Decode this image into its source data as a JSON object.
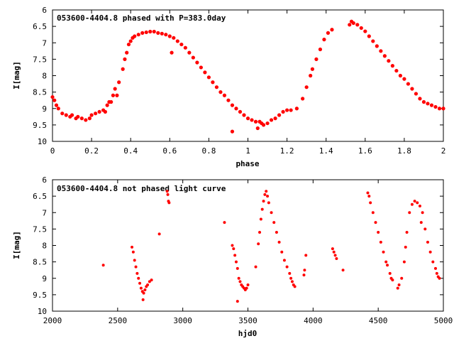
{
  "chart_data": [
    {
      "type": "scatter",
      "title": "053600-4404.8 phased with P=383.0day",
      "xlabel": "phase",
      "ylabel": "I[mag]",
      "xlim": [
        0,
        2
      ],
      "ylim": [
        6,
        10
      ],
      "y_inverted": true,
      "x_ticks": [
        "0",
        "0.2",
        "0.4",
        "0.6",
        "0.8",
        "1",
        "1.2",
        "1.4",
        "1.6",
        "1.8",
        "2"
      ],
      "y_ticks": [
        "6",
        "6.5",
        "7",
        "7.5",
        "8",
        "8.5",
        "9",
        "9.5",
        "10"
      ],
      "grid": false,
      "marker_color": "#ff0000",
      "series": [
        {
          "points": [
            [
              0.0,
              8.65
            ],
            [
              0.01,
              8.75
            ],
            [
              0.02,
              8.9
            ],
            [
              0.03,
              9.0
            ],
            [
              0.05,
              9.15
            ],
            [
              0.07,
              9.2
            ],
            [
              0.09,
              9.25
            ],
            [
              0.1,
              9.2
            ],
            [
              0.12,
              9.3
            ],
            [
              0.13,
              9.25
            ],
            [
              0.15,
              9.3
            ],
            [
              0.17,
              9.35
            ],
            [
              0.19,
              9.3
            ],
            [
              0.2,
              9.2
            ],
            [
              0.22,
              9.15
            ],
            [
              0.24,
              9.1
            ],
            [
              0.26,
              9.05
            ],
            [
              0.27,
              9.1
            ],
            [
              0.28,
              8.9
            ],
            [
              0.29,
              8.8
            ],
            [
              0.3,
              8.8
            ],
            [
              0.31,
              8.6
            ],
            [
              0.32,
              8.4
            ],
            [
              0.33,
              8.6
            ],
            [
              0.34,
              8.2
            ],
            [
              0.36,
              7.8
            ],
            [
              0.37,
              7.5
            ],
            [
              0.38,
              7.3
            ],
            [
              0.39,
              7.05
            ],
            [
              0.4,
              6.95
            ],
            [
              0.41,
              6.85
            ],
            [
              0.42,
              6.8
            ],
            [
              0.44,
              6.75
            ],
            [
              0.46,
              6.7
            ],
            [
              0.48,
              6.68
            ],
            [
              0.5,
              6.66
            ],
            [
              0.52,
              6.66
            ],
            [
              0.54,
              6.7
            ],
            [
              0.56,
              6.72
            ],
            [
              0.58,
              6.75
            ],
            [
              0.6,
              6.8
            ],
            [
              0.61,
              7.3
            ],
            [
              0.62,
              6.85
            ],
            [
              0.64,
              6.95
            ],
            [
              0.66,
              7.05
            ],
            [
              0.68,
              7.15
            ],
            [
              0.7,
              7.3
            ],
            [
              0.72,
              7.45
            ],
            [
              0.74,
              7.6
            ],
            [
              0.76,
              7.75
            ],
            [
              0.78,
              7.9
            ],
            [
              0.8,
              8.05
            ],
            [
              0.82,
              8.2
            ],
            [
              0.84,
              8.35
            ],
            [
              0.86,
              8.5
            ],
            [
              0.88,
              8.6
            ],
            [
              0.9,
              8.75
            ],
            [
              0.92,
              8.9
            ],
            [
              0.92,
              9.7
            ],
            [
              0.94,
              9.0
            ],
            [
              0.96,
              9.1
            ],
            [
              0.98,
              9.2
            ],
            [
              1.0,
              9.3
            ],
            [
              1.02,
              9.35
            ],
            [
              1.04,
              9.4
            ],
            [
              1.05,
              9.6
            ],
            [
              1.06,
              9.4
            ],
            [
              1.07,
              9.45
            ],
            [
              1.08,
              9.5
            ],
            [
              1.1,
              9.45
            ],
            [
              1.12,
              9.35
            ],
            [
              1.14,
              9.3
            ],
            [
              1.16,
              9.2
            ],
            [
              1.18,
              9.1
            ],
            [
              1.2,
              9.05
            ],
            [
              1.22,
              9.05
            ],
            [
              1.25,
              9.0
            ],
            [
              1.28,
              8.7
            ],
            [
              1.3,
              8.35
            ],
            [
              1.32,
              8.0
            ],
            [
              1.33,
              7.8
            ],
            [
              1.35,
              7.5
            ],
            [
              1.37,
              7.2
            ],
            [
              1.39,
              6.9
            ],
            [
              1.41,
              6.7
            ],
            [
              1.43,
              6.6
            ],
            [
              1.52,
              6.45
            ],
            [
              1.53,
              6.35
            ],
            [
              1.54,
              6.4
            ],
            [
              1.56,
              6.45
            ],
            [
              1.58,
              6.55
            ],
            [
              1.6,
              6.65
            ],
            [
              1.62,
              6.8
            ],
            [
              1.64,
              6.95
            ],
            [
              1.66,
              7.1
            ],
            [
              1.68,
              7.25
            ],
            [
              1.7,
              7.4
            ],
            [
              1.72,
              7.55
            ],
            [
              1.74,
              7.7
            ],
            [
              1.76,
              7.85
            ],
            [
              1.78,
              8.0
            ],
            [
              1.8,
              8.1
            ],
            [
              1.82,
              8.25
            ],
            [
              1.84,
              8.4
            ],
            [
              1.86,
              8.55
            ],
            [
              1.88,
              8.7
            ],
            [
              1.9,
              8.8
            ],
            [
              1.92,
              8.85
            ],
            [
              1.94,
              8.9
            ],
            [
              1.96,
              8.95
            ],
            [
              1.98,
              9.0
            ],
            [
              2.0,
              9.0
            ]
          ]
        }
      ]
    },
    {
      "type": "scatter",
      "title": "053600-4404.8 not phased light curve",
      "xlabel": "hjd0",
      "ylabel": "I[mag]",
      "xlim": [
        2000,
        5000
      ],
      "ylim": [
        6,
        10
      ],
      "y_inverted": true,
      "x_ticks": [
        "2000",
        "2500",
        "3000",
        "3500",
        "4000",
        "4500",
        "5000"
      ],
      "y_ticks": [
        "6",
        "6.5",
        "7",
        "7.5",
        "8",
        "8.5",
        "9",
        "9.5",
        "10"
      ],
      "grid": false,
      "marker_color": "#ff0000",
      "series": [
        {
          "points": [
            [
              2390,
              8.6
            ],
            [
              2610,
              8.05
            ],
            [
              2620,
              8.2
            ],
            [
              2630,
              8.45
            ],
            [
              2640,
              8.65
            ],
            [
              2650,
              8.85
            ],
            [
              2660,
              9.0
            ],
            [
              2670,
              9.15
            ],
            [
              2680,
              9.3
            ],
            [
              2690,
              9.4
            ],
            [
              2695,
              9.65
            ],
            [
              2700,
              9.45
            ],
            [
              2710,
              9.35
            ],
            [
              2720,
              9.25
            ],
            [
              2730,
              9.2
            ],
            [
              2745,
              9.1
            ],
            [
              2760,
              9.05
            ],
            [
              2820,
              7.65
            ],
            [
              2880,
              6.35
            ],
            [
              2885,
              6.45
            ],
            [
              2890,
              6.65
            ],
            [
              2895,
              6.7
            ],
            [
              3320,
              7.3
            ],
            [
              3380,
              8.0
            ],
            [
              3390,
              8.1
            ],
            [
              3400,
              8.3
            ],
            [
              3410,
              8.5
            ],
            [
              3420,
              8.7
            ],
            [
              3430,
              9.0
            ],
            [
              3440,
              9.1
            ],
            [
              3450,
              9.2
            ],
            [
              3460,
              9.25
            ],
            [
              3470,
              9.3
            ],
            [
              3480,
              9.35
            ],
            [
              3490,
              9.3
            ],
            [
              3500,
              9.2
            ],
            [
              3420,
              9.7
            ],
            [
              3560,
              8.65
            ],
            [
              3580,
              7.95
            ],
            [
              3590,
              7.6
            ],
            [
              3600,
              7.2
            ],
            [
              3610,
              6.9
            ],
            [
              3620,
              6.65
            ],
            [
              3630,
              6.45
            ],
            [
              3640,
              6.35
            ],
            [
              3650,
              6.5
            ],
            [
              3660,
              6.7
            ],
            [
              3680,
              7.0
            ],
            [
              3700,
              7.3
            ],
            [
              3720,
              7.6
            ],
            [
              3740,
              7.9
            ],
            [
              3760,
              8.2
            ],
            [
              3780,
              8.45
            ],
            [
              3800,
              8.65
            ],
            [
              3820,
              8.85
            ],
            [
              3830,
              9.0
            ],
            [
              3840,
              9.1
            ],
            [
              3850,
              9.2
            ],
            [
              3860,
              9.25
            ],
            [
              3930,
              8.9
            ],
            [
              3935,
              8.75
            ],
            [
              3945,
              8.3
            ],
            [
              4150,
              8.1
            ],
            [
              4160,
              8.2
            ],
            [
              4170,
              8.3
            ],
            [
              4180,
              8.4
            ],
            [
              4230,
              8.75
            ],
            [
              4420,
              6.4
            ],
            [
              4430,
              6.5
            ],
            [
              4440,
              6.7
            ],
            [
              4460,
              7.0
            ],
            [
              4480,
              7.3
            ],
            [
              4500,
              7.6
            ],
            [
              4520,
              7.9
            ],
            [
              4540,
              8.2
            ],
            [
              4560,
              8.5
            ],
            [
              4570,
              8.6
            ],
            [
              4590,
              8.85
            ],
            [
              4600,
              9.0
            ],
            [
              4610,
              9.05
            ],
            [
              4650,
              9.3
            ],
            [
              4660,
              9.2
            ],
            [
              4680,
              9.0
            ],
            [
              4700,
              8.5
            ],
            [
              4710,
              8.05
            ],
            [
              4720,
              7.6
            ],
            [
              4740,
              7.0
            ],
            [
              4760,
              6.75
            ],
            [
              4780,
              6.65
            ],
            [
              4800,
              6.7
            ],
            [
              4820,
              6.8
            ],
            [
              4840,
              7.0
            ],
            [
              4830,
              7.3
            ],
            [
              4860,
              7.5
            ],
            [
              4880,
              7.9
            ],
            [
              4900,
              8.2
            ],
            [
              4920,
              8.5
            ],
            [
              4940,
              8.7
            ],
            [
              4950,
              8.85
            ],
            [
              4960,
              8.95
            ],
            [
              4970,
              9.0
            ]
          ]
        }
      ]
    }
  ]
}
